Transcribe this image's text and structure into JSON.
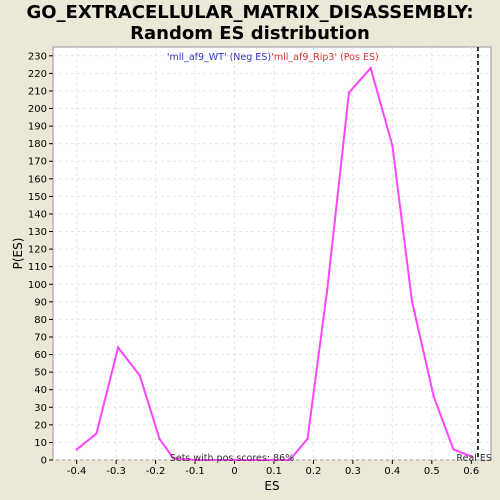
{
  "chart_data": {
    "type": "line",
    "title": "GO_EXTRACELLULAR_MATRIX_DISASSEMBLY:",
    "subtitle": "Random ES distribution",
    "xlabel": "ES",
    "ylabel": "P(ES)",
    "xlim": [
      -0.46,
      0.65
    ],
    "ylim": [
      0,
      235
    ],
    "x_ticks": [
      -0.4,
      -0.3,
      -0.2,
      -0.1,
      0.0,
      0.1,
      0.2,
      0.3,
      0.4,
      0.5,
      0.6
    ],
    "x_tick_labels": [
      "-0.4",
      "-0.3",
      "-0.2",
      "-0.1",
      "0",
      "0.1",
      "0.2",
      "0.3",
      "0.4",
      "0.5",
      "0.6"
    ],
    "y_ticks": [
      0,
      10,
      20,
      30,
      40,
      50,
      60,
      70,
      80,
      90,
      100,
      110,
      120,
      130,
      140,
      150,
      160,
      170,
      180,
      190,
      200,
      210,
      220,
      230
    ],
    "grid": true,
    "series": [
      {
        "color": "#ff44ff",
        "x": [
          -0.4,
          -0.35,
          -0.295,
          -0.24,
          -0.19,
          -0.155,
          -0.1,
          -0.05,
          0.0,
          0.05,
          0.1,
          0.14,
          0.185,
          0.235,
          0.29,
          0.345,
          0.4,
          0.45,
          0.505,
          0.555,
          0.6
        ],
        "y": [
          6,
          15,
          64,
          48,
          12,
          1,
          0,
          0,
          0,
          0,
          0,
          0,
          12,
          97,
          209,
          223,
          179,
          90,
          36,
          6,
          2
        ]
      }
    ],
    "legend": [
      {
        "label": "'mll_af9_WT' (Neg ES)",
        "color": "#3333cc"
      },
      {
        "label": "'mll_af9_Rip3' (Pos ES)",
        "color": "#dd3333"
      }
    ],
    "real_es": {
      "label": "Real ES",
      "x": 0.617
    },
    "annotation": "Sets with pos scores: 86%"
  }
}
